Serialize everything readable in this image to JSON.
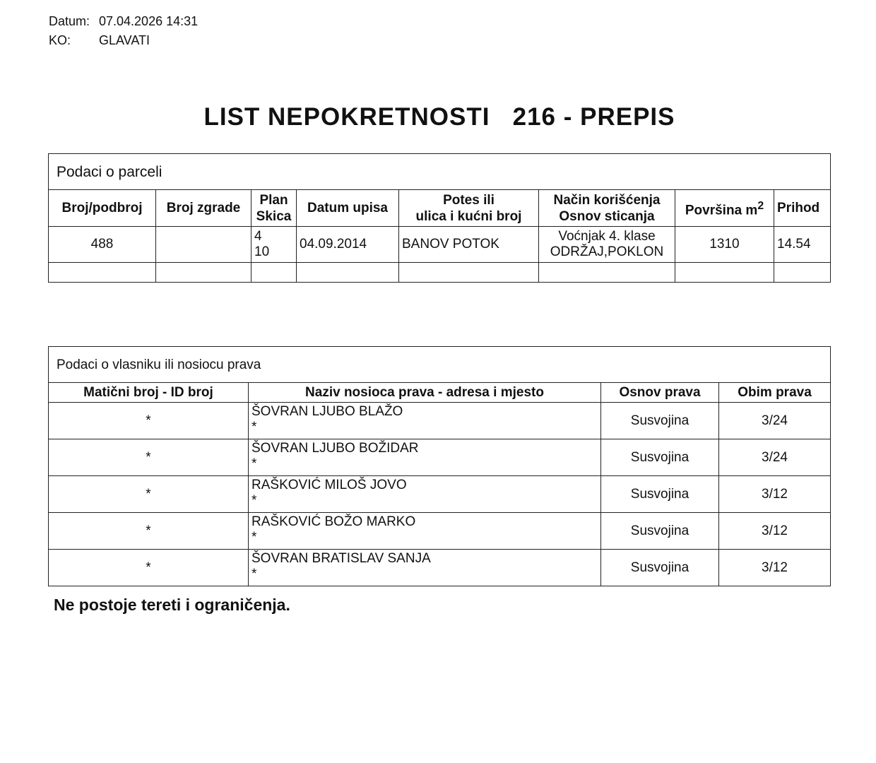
{
  "header": {
    "datum_label": "Datum:",
    "datum_value": "07.04.2026 14:31",
    "ko_label": "KO:",
    "ko_value": "GLAVATI"
  },
  "title": "LIST NEPOKRETNOSTI   216 - PREPIS",
  "parcel": {
    "caption": "Podaci o parceli",
    "columns": [
      "Broj/podbroj",
      "Broj zgrade",
      "Plan",
      "Skica",
      "Datum upisa",
      "Potes ili",
      "ulica i kućni broj",
      "Način korišćenja",
      "Osnov sticanja",
      "Površina m",
      "2",
      "Prihod"
    ],
    "row": {
      "broj": "488",
      "zgrada": "",
      "plan": "4",
      "skica": "10",
      "datum": "04.09.2014",
      "potes": "BANOV POTOK",
      "nacin": "Voćnjak 4. klase",
      "osnov": "ODRŽAJ,POKLON",
      "povrsina": "1310",
      "prihod": "14.54"
    }
  },
  "owners": {
    "caption": "Podaci o vlasniku ili nosiocu prava",
    "columns": [
      "Matični broj - ID broj",
      "Naziv nosioca prava - adresa i mjesto",
      "Osnov prava",
      "Obim prava"
    ],
    "rows": [
      {
        "id": "*",
        "name": "ŠOVRAN LJUBO BLAŽO",
        "addr": "*",
        "osnov": "Susvojina",
        "obim": "3/24"
      },
      {
        "id": "*",
        "name": "ŠOVRAN LJUBO BOŽIDAR",
        "addr": "*",
        "osnov": "Susvojina",
        "obim": "3/24"
      },
      {
        "id": "*",
        "name": "RAŠKOVIĆ MILOŠ JOVO",
        "addr": "*",
        "osnov": "Susvojina",
        "obim": "3/12"
      },
      {
        "id": "*",
        "name": "RAŠKOVIĆ BOŽO MARKO",
        "addr": "*",
        "osnov": "Susvojina",
        "obim": "3/12"
      },
      {
        "id": "*",
        "name": "ŠOVRAN BRATISLAV SANJA",
        "addr": "*",
        "osnov": "Susvojina",
        "obim": "3/12"
      }
    ]
  },
  "footer": "Ne postoje tereti i ograničenja."
}
